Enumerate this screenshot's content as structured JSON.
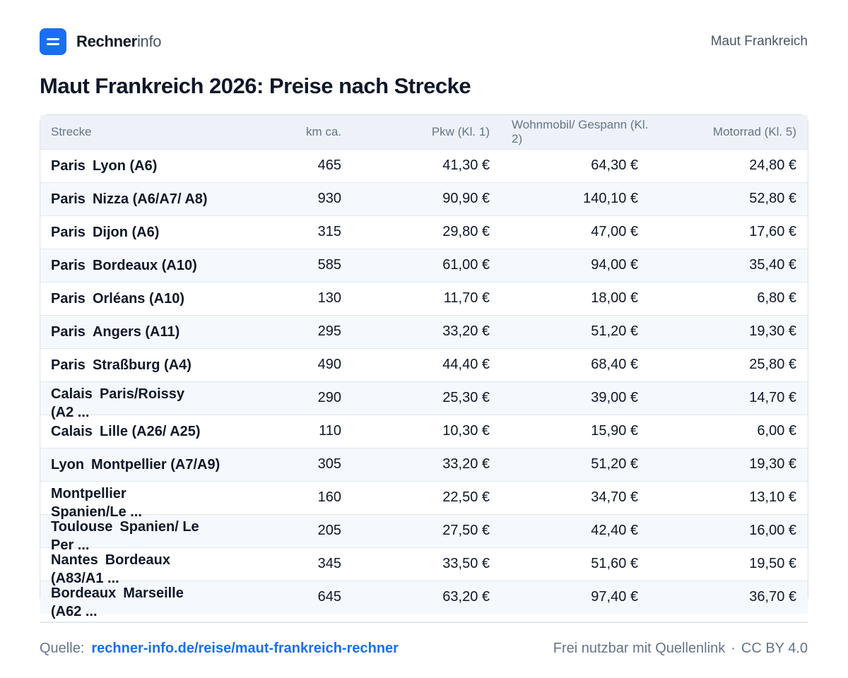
{
  "brand": {
    "name_bold": "Rechner",
    "name_light": "info"
  },
  "header": {
    "right_text": "Maut Frankreich"
  },
  "title": "Maut Frankreich 2026: Preise nach Strecke",
  "table": {
    "headers": [
      "Strecke",
      "km ca.",
      "Pkw (Kl. 1)",
      "Wohnmobil/ Gespann (Kl. 2)",
      "Motorrad (Kl. 5)"
    ],
    "rows": [
      {
        "from": "Paris",
        "to": "Lyon (A6)",
        "km": "465",
        "pkw": "41,30 €",
        "wohnmobil": "64,30 €",
        "motorrad": "24,80 €"
      },
      {
        "from": "Paris",
        "to": "Nizza (A6/A7/ A8)",
        "km": "930",
        "pkw": "90,90 €",
        "wohnmobil": "140,10 €",
        "motorrad": "52,80 €"
      },
      {
        "from": "Paris",
        "to": "Dijon (A6)",
        "km": "315",
        "pkw": "29,80 €",
        "wohnmobil": "47,00 €",
        "motorrad": "17,60 €"
      },
      {
        "from": "Paris",
        "to": "Bordeaux (A10)",
        "km": "585",
        "pkw": "61,00 €",
        "wohnmobil": "94,00 €",
        "motorrad": "35,40 €"
      },
      {
        "from": "Paris",
        "to": "Orléans (A10)",
        "km": "130",
        "pkw": "11,70 €",
        "wohnmobil": "18,00 €",
        "motorrad": "6,80 €"
      },
      {
        "from": "Paris",
        "to": "Angers (A11)",
        "km": "295",
        "pkw": "33,20 €",
        "wohnmobil": "51,20 €",
        "motorrad": "19,30 €"
      },
      {
        "from": "Paris",
        "to": "Straßburg (A4)",
        "km": "490",
        "pkw": "44,40 €",
        "wohnmobil": "68,40 €",
        "motorrad": "25,80 €"
      },
      {
        "from": "Calais",
        "to": "Paris/Roissy (A2 ...",
        "km": "290",
        "pkw": "25,30 €",
        "wohnmobil": "39,00 €",
        "motorrad": "14,70 €"
      },
      {
        "from": "Calais",
        "to": "Lille (A26/ A25)",
        "km": "110",
        "pkw": "10,30 €",
        "wohnmobil": "15,90 €",
        "motorrad": "6,00 €"
      },
      {
        "from": "Lyon",
        "to": "Montpellier (A7/A9)",
        "km": "305",
        "pkw": "33,20 €",
        "wohnmobil": "51,20 €",
        "motorrad": "19,30 €"
      },
      {
        "from": "Montpellier",
        "to": "Spanien/Le ...",
        "km": "160",
        "pkw": "22,50 €",
        "wohnmobil": "34,70 €",
        "motorrad": "13,10 €"
      },
      {
        "from": "Toulouse",
        "to": "Spanien/ Le Per ...",
        "km": "205",
        "pkw": "27,50 €",
        "wohnmobil": "42,40 €",
        "motorrad": "16,00 €"
      },
      {
        "from": "Nantes",
        "to": "Bordeaux (A83/A1 ...",
        "km": "345",
        "pkw": "33,50 €",
        "wohnmobil": "51,60 €",
        "motorrad": "19,50 €"
      },
      {
        "from": "Bordeaux",
        "to": "Marseille (A62 ...",
        "km": "645",
        "pkw": "63,20 €",
        "wohnmobil": "97,40 €",
        "motorrad": "36,70 €"
      }
    ]
  },
  "footer": {
    "source_label": "Quelle:",
    "source_link": "rechner-info.de/reise/maut-frankreich-rechner",
    "license_text": "Frei nutzbar mit Quellenlink",
    "dot": "·",
    "license": "CC BY 4.0"
  },
  "colors": {
    "accent": "#1a6ef0",
    "header_bg": "#eef2f8",
    "stripe_bg": "#f5f8fc",
    "muted_text": "#64748b"
  }
}
